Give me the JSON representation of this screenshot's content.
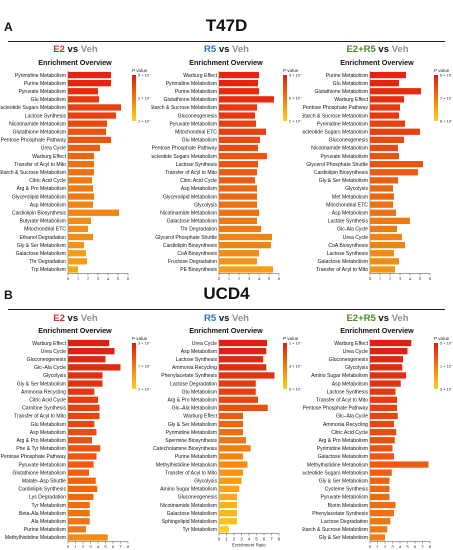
{
  "labels": {
    "panelA": "A",
    "panelB": "B",
    "t47d": "T47D",
    "ucd4": "UCD4",
    "vs": " vs ",
    "veh": "Veh",
    "e2": "E2",
    "r5": "R5",
    "e2r5": "E2+R5"
  },
  "colors": {
    "e2": "#d0302a",
    "r5": "#2a6fc0",
    "e2r5": "#4a8a2a",
    "veh": "#909090",
    "high": "#e3180c",
    "low": "#ffe21a",
    "grad_top": "#e01a10",
    "grad_mid": "#f07a10",
    "grad_bottom": "#ffd21a"
  },
  "chart_data": [
    {
      "type": "bar",
      "section": "T47D",
      "comparison": "E2 vs Veh",
      "title": "Enrichment Overview",
      "xlabel": "Enrichment Ratio",
      "legend_title": "P value",
      "legend_ticks": [
        "5 × 10⁻¹",
        "2 × 10⁻¹",
        "1 × 10⁻¹"
      ],
      "xticks": [
        0,
        1,
        2,
        3,
        4,
        5,
        6
      ],
      "xlim": [
        0,
        6
      ],
      "categories": [
        "Pyrimidine Metabolism",
        "Purine Metabolism",
        "Pyruvate Metabolism",
        "Glu Metabolism",
        "Nucleotide Sugars Metabolism",
        "Lactose Synthesis",
        "Nicotinamide Metabolism",
        "Glutathione Metabolism",
        "Pentose Phosphate Pathway",
        "Urea Cycle",
        "Warburg Effect",
        "Transfer of Acyl to Mito",
        "Starch & Sucrose Metabolism",
        "Citric Acid Cycle",
        "Arg & Pro Metabolism",
        "Glycerolipid Metabolism",
        "Asp Metabolism",
        "Cardiolipin Biosynthesis",
        "Butyrate Metabolism",
        "Mitochondrial ETC",
        "Ethanol Degradation",
        "Gly & Ser Metabolism",
        "Galactose Metabolism",
        "Thr Degradation",
        "Trp Metabolism"
      ],
      "values": [
        4.3,
        4.3,
        3.0,
        3.1,
        5.3,
        4.8,
        3.9,
        3.8,
        4.3,
        3.2,
        2.6,
        2.6,
        2.6,
        2.4,
        2.5,
        2.6,
        2.5,
        5.1,
        2.3,
        2.0,
        2.5,
        1.6,
        1.8,
        1.9,
        1.0
      ],
      "pvalue_level": [
        0.95,
        0.95,
        0.9,
        0.85,
        0.8,
        0.8,
        0.75,
        0.7,
        0.7,
        0.65,
        0.6,
        0.55,
        0.55,
        0.5,
        0.5,
        0.5,
        0.45,
        0.45,
        0.4,
        0.4,
        0.4,
        0.35,
        0.3,
        0.3,
        0.25
      ]
    },
    {
      "type": "bar",
      "section": "T47D",
      "comparison": "R5 vs Veh",
      "title": "Enrichment Overview",
      "xlabel": "Enrichment Ratio",
      "legend_title": "P value",
      "legend_ticks": [
        "3 × 10⁻¹",
        "6 × 10⁻¹",
        "2 × 10⁻¹"
      ],
      "xticks": [
        0,
        1,
        2,
        3,
        4,
        5,
        6
      ],
      "xlim": [
        0,
        6
      ],
      "categories": [
        "Warburg Effect",
        "Pyrimidine Metabolism",
        "Purine Metabolism",
        "Glutathione Metabolism",
        "Starch & Sucrose Metabolism",
        "Gluconeogenesis",
        "Pyruvate Metabolism",
        "Mitochondrial ETC",
        "Glu Metabolism",
        "Pentose Phosphate Pathway",
        "Nucleotide Sugars Metabolism",
        "Lactose Synthesis",
        "Transfer of Acyl to Mito",
        "Citric Acid Cycle",
        "Asp Metabolism",
        "Glycerolipid Metabolism",
        "Glycolysis",
        "Nicotinamide Metabolism",
        "Galactose Metabolism",
        "Thr Degradation",
        "Glycerol Phosphate Shuttle",
        "Cardiolipin Biosynthesis",
        "CoA Biosynthesis",
        "Fructose Degradation",
        "PE Biosynthesis"
      ],
      "values": [
        4.0,
        3.9,
        4.0,
        5.5,
        3.8,
        3.6,
        3.7,
        4.7,
        4.1,
        3.9,
        4.8,
        3.9,
        3.8,
        3.6,
        3.8,
        3.8,
        3.8,
        4.0,
        3.8,
        4.2,
        5.3,
        5.2,
        4.0,
        3.8,
        5.4
      ],
      "pvalue_level": [
        0.95,
        0.95,
        0.9,
        0.9,
        0.85,
        0.85,
        0.8,
        0.8,
        0.75,
        0.75,
        0.7,
        0.7,
        0.65,
        0.65,
        0.6,
        0.6,
        0.55,
        0.55,
        0.5,
        0.5,
        0.45,
        0.45,
        0.4,
        0.35,
        0.3
      ]
    },
    {
      "type": "bar",
      "section": "T47D",
      "comparison": "E2+R5 vs Veh",
      "title": "Enrichment Overview",
      "xlabel": "Enrichment Ratio",
      "legend_title": "P value",
      "legend_ticks": [
        "6 × 10⁻¹",
        "7 × 10⁻¹",
        "8 × 10⁻¹"
      ],
      "xticks": [
        0,
        1,
        2,
        3,
        4,
        5,
        6
      ],
      "xlim": [
        0,
        6
      ],
      "categories": [
        "Purine Metabolism",
        "Glu Metabolism",
        "Glutathione Metabolism",
        "Warburg Effect",
        "Pentose Phosphate Pathway",
        "Starch & Sucrose Metabolism",
        "Pyrimidine Metabolism",
        "Nucleotide Sugars Metabolism",
        "Gluconeogenesis",
        "Nicotinamide Metabolism",
        "Pyruvate Metabolism",
        "Glycerol Phosphate Shuttle",
        "Cardiolipin Biosynthesis",
        "Gly & Ser Metabolism",
        "Glycolysis",
        "Met Metabolism",
        "Mitochondrial ETC",
        "Asp Metabolism",
        "Lactate Synthesis",
        "Glc-Ala Cycle",
        "Urea Cycle",
        "CoA Biosynthesis",
        "Lactose Synthesis",
        "Galactose Metabolism",
        "Transfer of Acyl to Mito"
      ],
      "values": [
        3.6,
        2.9,
        5.1,
        3.4,
        3.0,
        2.9,
        3.5,
        5.0,
        3.4,
        2.8,
        2.9,
        5.3,
        4.8,
        2.8,
        2.3,
        2.4,
        2.3,
        2.6,
        4.0,
        2.7,
        3.2,
        3.5,
        2.4,
        2.9,
        2.5
      ],
      "pvalue_level": [
        0.95,
        0.95,
        0.9,
        0.9,
        0.85,
        0.85,
        0.8,
        0.8,
        0.75,
        0.75,
        0.7,
        0.7,
        0.65,
        0.65,
        0.6,
        0.6,
        0.55,
        0.55,
        0.5,
        0.5,
        0.45,
        0.45,
        0.4,
        0.4,
        0.35
      ]
    },
    {
      "type": "bar",
      "section": "UCD4",
      "comparison": "E2 vs Veh",
      "title": "Enrichment Overview",
      "xlabel": "Enrichment Ratio",
      "legend_title": "P value",
      "legend_ticks": [
        "3 × 10⁻¹",
        "7 × 10⁻²",
        "1 × 10⁻¹"
      ],
      "xticks": [
        0,
        1,
        2,
        3,
        4,
        5,
        6,
        7,
        8
      ],
      "xlim": [
        0,
        8
      ],
      "categories": [
        "Warburg Effect",
        "Urea Cycle",
        "Gluconeogenesis",
        "Glc–Ala Cycle",
        "Glycolysis",
        "Gly & Ser Metabolism",
        "Ammonia Recycling",
        "Citric Acid Cycle",
        "Carnitine Synthesis",
        "Transfer of Acyl to Mito",
        "Glu Metabolism",
        "Asp Metabolism",
        "Arg & Pro Metabolism",
        "Phe & Tyr Metabolism",
        "Pentose Phosphate Pathway",
        "Pyruvate Metabolism",
        "Glutathione Metabolism",
        "Malate–Asp Shuttle",
        "Cardiolipin Synthesis",
        "Lys Degradation",
        "Tyr Metabolism",
        "Beta-Ala Metabolism",
        "Ala Metabolism",
        "Purine Metabolism",
        "Methylhistidine Metabolism"
      ],
      "values": [
        5.5,
        6.2,
        5.0,
        7.0,
        4.6,
        4.6,
        3.5,
        4.0,
        4.2,
        4.2,
        3.5,
        3.8,
        3.2,
        4.3,
        3.8,
        3.4,
        2.8,
        3.7,
        3.9,
        3.4,
        2.9,
        2.9,
        2.9,
        2.4,
        5.3
      ],
      "pvalue_level": [
        0.98,
        0.97,
        0.95,
        0.92,
        0.9,
        0.88,
        0.85,
        0.82,
        0.8,
        0.78,
        0.76,
        0.74,
        0.72,
        0.7,
        0.68,
        0.66,
        0.64,
        0.62,
        0.6,
        0.58,
        0.56,
        0.54,
        0.52,
        0.5,
        0.4
      ]
    },
    {
      "type": "bar",
      "section": "UCD4",
      "comparison": "R5 vs Veh",
      "title": "Enrichment Overview",
      "xlabel": "Enrichment Ratio",
      "legend_title": "P value",
      "legend_ticks": [
        "1 × 10⁻¹",
        "3 × 10⁻¹",
        "6 × 10⁻¹"
      ],
      "xticks": [
        0,
        1,
        2,
        3,
        4,
        5,
        6,
        7,
        8
      ],
      "xlim": [
        0,
        8
      ],
      "categories": [
        "Urea Cycle",
        "Asp Metabolism",
        "Lactose Synthesis",
        "Ammonia Recycling",
        "Phenylacetate Synthesis",
        "Lactose Degradation",
        "Glu Metabolism",
        "Arg & Pro Metabolism",
        "Glc–Ala Metabolism",
        "Warburg Effect",
        "Gly & Ser Metabolism",
        "Pyrimidine Metabolism",
        "Spermine Biosynthesis",
        "Catecholamine Biosynthesis",
        "Purine Metabolism",
        "Methylhistidine Metabolism",
        "Transfer of Acyl to Mito",
        "Glycolysis",
        "Amino Sugar Metabolism",
        "Gluconeogenesis",
        "Nicotinamide Metabolism",
        "Galactose Metabolism",
        "Sphingolipid Metabolism",
        "Tyr Metabolism"
      ],
      "values": [
        6.4,
        6.3,
        5.9,
        6.3,
        7.4,
        4.9,
        4.9,
        5.2,
        6.5,
        3.2,
        3.2,
        3.2,
        3.6,
        4.2,
        3.2,
        3.8,
        3.2,
        3.0,
        2.7,
        2.4,
        2.4,
        2.4,
        2.4,
        1.3
      ],
      "pvalue_level": [
        0.98,
        0.96,
        0.94,
        0.92,
        0.88,
        0.84,
        0.8,
        0.76,
        0.72,
        0.66,
        0.6,
        0.56,
        0.52,
        0.48,
        0.44,
        0.4,
        0.35,
        0.3,
        0.26,
        0.22,
        0.18,
        0.14,
        0.1,
        0.03
      ]
    },
    {
      "type": "bar",
      "section": "UCD4",
      "comparison": "E2+R5 vs Veh",
      "title": "Enrichment Overview",
      "xlabel": "Enrichment Ratio",
      "legend_title": "P value",
      "legend_ticks": [
        "5 × 10⁻¹",
        "1 × 10⁻¹",
        "3 × 10⁻¹"
      ],
      "xticks": [
        0,
        1,
        2,
        3,
        4,
        5,
        6,
        7,
        8
      ],
      "xlim": [
        0,
        8
      ],
      "categories": [
        "Warburg Effect",
        "Urea Cycle",
        "Gluconeogenesis",
        "Glycolysis",
        "Amino Sugar Metabolism",
        "Asp Metabolism",
        "Lactose Synthesis",
        "Transfer of Acyl to Mito",
        "Pentose Phosphate Pathway",
        "Glc–Ala Cycle",
        "Ammonia Recycling",
        "Citric Acid Cycle",
        "Arg & Pro Metabolism",
        "Pyrimidine Metabolism",
        "Galactose Metabolism",
        "Methylhistidine Metabolism",
        "Nucleotide Sugars Metabolism",
        "Gly & Ser Metabolism",
        "Cysteine Synthesis",
        "Pyruvate Metabolism",
        "Biotin Metabolism",
        "Phenylacetate Synthesis",
        "Lactose Degradation",
        "Starch & Sucrose Metabolism",
        "Gly & Ser Metabolism"
      ],
      "values": [
        5.5,
        5.0,
        4.4,
        4.3,
        4.8,
        4.1,
        3.4,
        3.6,
        3.6,
        3.7,
        3.2,
        3.5,
        3.3,
        3.0,
        3.2,
        7.8,
        2.9,
        2.6,
        2.6,
        2.6,
        3.4,
        3.2,
        2.7,
        2.3,
        2.0
      ],
      "pvalue_level": [
        0.98,
        0.97,
        0.95,
        0.92,
        0.9,
        0.88,
        0.85,
        0.82,
        0.8,
        0.78,
        0.76,
        0.74,
        0.72,
        0.7,
        0.68,
        0.66,
        0.64,
        0.62,
        0.6,
        0.58,
        0.56,
        0.54,
        0.52,
        0.5,
        0.48
      ]
    }
  ]
}
